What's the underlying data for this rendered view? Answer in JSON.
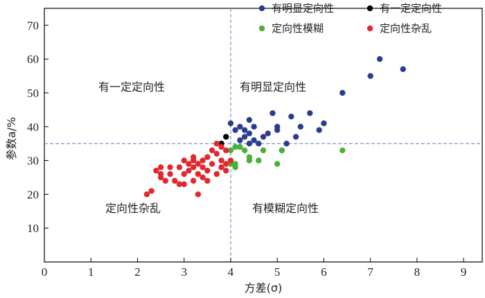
{
  "chart_data": {
    "type": "scatter",
    "title": "",
    "xlabel": "方差(σ)",
    "ylabel": "参数a/%",
    "xlim": [
      0,
      9.4
    ],
    "ylim": [
      0,
      75
    ],
    "x_ticks": [
      "0",
      "1",
      "2",
      "3",
      "4",
      "5",
      "6",
      "7",
      "8",
      "9"
    ],
    "y_ticks": [
      "10",
      "20",
      "30",
      "40",
      "50",
      "60",
      "70"
    ],
    "reference_lines": {
      "x": 4.0,
      "y": 35.0
    },
    "legend_position": "top-right",
    "region_labels": {
      "top_left": "有一定定向性",
      "top_right": "有明显定向性",
      "bottom_left": "定向性杂乱",
      "bottom_right": "有模糊定向性"
    },
    "series": [
      {
        "name": "有明显定向性",
        "color": "#2a3c8f",
        "points": [
          [
            4.0,
            41
          ],
          [
            4.2,
            40
          ],
          [
            4.3,
            39
          ],
          [
            4.4,
            38
          ],
          [
            4.4,
            42
          ],
          [
            4.5,
            40
          ],
          [
            4.3,
            37
          ],
          [
            4.5,
            36
          ],
          [
            4.2,
            36
          ],
          [
            4.1,
            39
          ],
          [
            4.4,
            35
          ],
          [
            4.6,
            35
          ],
          [
            4.8,
            38
          ],
          [
            4.9,
            44
          ],
          [
            5.0,
            40
          ],
          [
            5.0,
            39
          ],
          [
            5.2,
            35
          ],
          [
            5.3,
            43
          ],
          [
            5.4,
            37
          ],
          [
            5.5,
            40
          ],
          [
            5.7,
            44
          ],
          [
            5.9,
            39
          ],
          [
            6.0,
            41
          ],
          [
            6.4,
            50
          ],
          [
            7.0,
            55
          ],
          [
            7.2,
            60
          ],
          [
            7.7,
            57
          ],
          [
            5.1,
            33
          ],
          [
            4.7,
            37
          ]
        ]
      },
      {
        "name": "有一定定向性",
        "color": "#000000",
        "points": [
          [
            3.8,
            35
          ],
          [
            3.9,
            37
          ]
        ]
      },
      {
        "name": "定向性模糊",
        "color": "#4caf3a",
        "points": [
          [
            4.0,
            33
          ],
          [
            4.1,
            34
          ],
          [
            4.2,
            34
          ],
          [
            4.3,
            33
          ],
          [
            4.4,
            31
          ],
          [
            4.4,
            30
          ],
          [
            4.6,
            30
          ],
          [
            4.7,
            33
          ],
          [
            5.0,
            29
          ],
          [
            5.1,
            33
          ],
          [
            4.0,
            29
          ],
          [
            4.1,
            28
          ],
          [
            4.1,
            29
          ],
          [
            6.4,
            33
          ]
        ]
      },
      {
        "name": "定向性杂乱",
        "color": "#e0282e",
        "points": [
          [
            2.2,
            20
          ],
          [
            2.3,
            21
          ],
          [
            2.4,
            27
          ],
          [
            2.5,
            26
          ],
          [
            2.5,
            28
          ],
          [
            2.6,
            24
          ],
          [
            2.7,
            26
          ],
          [
            2.7,
            28
          ],
          [
            2.8,
            24
          ],
          [
            2.9,
            23
          ],
          [
            2.9,
            28
          ],
          [
            3.0,
            26
          ],
          [
            3.0,
            30
          ],
          [
            3.1,
            27
          ],
          [
            3.1,
            29
          ],
          [
            3.2,
            24
          ],
          [
            3.2,
            28
          ],
          [
            3.2,
            31
          ],
          [
            3.3,
            20
          ],
          [
            3.3,
            26
          ],
          [
            3.3,
            29
          ],
          [
            3.4,
            25
          ],
          [
            3.4,
            30
          ],
          [
            3.5,
            27
          ],
          [
            3.5,
            31
          ],
          [
            3.6,
            29
          ],
          [
            3.6,
            33
          ],
          [
            3.7,
            26
          ],
          [
            3.7,
            32
          ],
          [
            3.8,
            28
          ],
          [
            3.8,
            30
          ],
          [
            3.9,
            27
          ],
          [
            3.9,
            33
          ],
          [
            4.0,
            30
          ],
          [
            3.7,
            35
          ],
          [
            3.5,
            24
          ],
          [
            3.4,
            28
          ],
          [
            3.2,
            30
          ],
          [
            3.0,
            23
          ],
          [
            2.5,
            25
          ],
          [
            3.8,
            34
          ],
          [
            3.9,
            29
          ]
        ]
      }
    ]
  }
}
